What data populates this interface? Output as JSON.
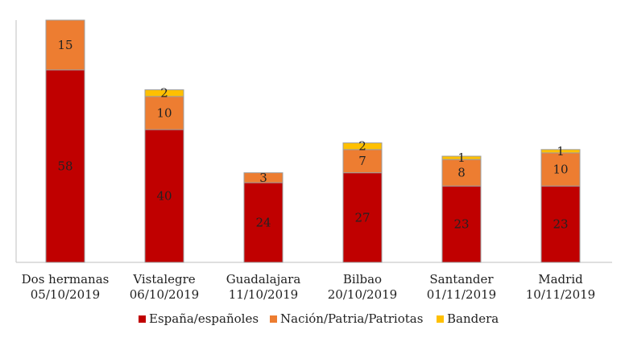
{
  "chart_data": {
    "type": "bar",
    "stacked": true,
    "categories": [
      [
        "Dos hermanas",
        "05/10/2019"
      ],
      [
        "Vistalegre",
        "06/10/2019"
      ],
      [
        "Guadalajara",
        "11/10/2019"
      ],
      [
        "Bilbao",
        "20/10/2019"
      ],
      [
        "Santander",
        "01/11/2019"
      ],
      [
        "Madrid",
        "10/11/2019"
      ]
    ],
    "series": [
      {
        "name": "España/españoles",
        "color": "#C00000",
        "values": [
          58,
          40,
          24,
          27,
          23,
          23
        ]
      },
      {
        "name": "Nación/Patria/Patriotas",
        "color": "#ED7D31",
        "values": [
          15,
          10,
          3,
          7,
          8,
          10
        ]
      },
      {
        "name": "Bandera",
        "color": "#FFC000",
        "values": [
          0,
          2,
          0,
          2,
          1,
          1
        ]
      }
    ],
    "ylim": [
      0,
      73
    ],
    "grid": false,
    "legend": "bottom-center",
    "title": "",
    "xlabel": "",
    "ylabel": ""
  }
}
